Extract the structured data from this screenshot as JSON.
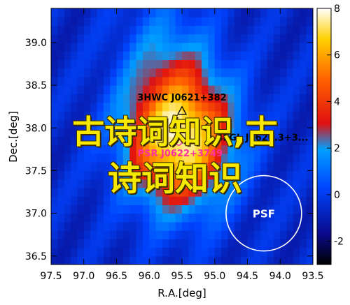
{
  "chart_data": {
    "type": "heatmap",
    "title": "",
    "xlabel": "R.A.[deg]",
    "ylabel": "Dec.[deg]",
    "xlim": [
      97.5,
      93.5
    ],
    "ylim": [
      36.4,
      39.4
    ],
    "x_ticks": [
      "97.5",
      "97.0",
      "96.5",
      "96.0",
      "95.5",
      "95.0",
      "94.5",
      "94.0",
      "93.5"
    ],
    "x_tick_values": [
      97.5,
      97.0,
      96.5,
      96.0,
      95.5,
      95.0,
      94.5,
      94.0,
      93.5
    ],
    "y_ticks": [
      "36.5",
      "37.0",
      "37.5",
      "38.0",
      "38.5",
      "39.0"
    ],
    "y_tick_values": [
      36.5,
      37.0,
      37.5,
      38.0,
      38.5,
      39.0
    ],
    "colorbar": {
      "range": [
        -3,
        8
      ],
      "ticks": [
        "-2",
        "0",
        "2",
        "4",
        "6",
        "8"
      ],
      "tick_values": [
        -2,
        0,
        2,
        4,
        6,
        8
      ],
      "colormap": "jet-like blue-red-yellow-white"
    },
    "peak": {
      "ra": 95.6,
      "dec": 37.85,
      "value": 8.0
    },
    "grid": false,
    "annotations": [
      {
        "label": "3HWC J0621+382",
        "ra": 95.5,
        "dec": 38.2,
        "marker": "triangle"
      },
      {
        "label": "PSR J0622+3749",
        "ra": 95.55,
        "dec": 37.83,
        "marker": "circle",
        "color": "#ff2fa0"
      },
      {
        "label": "4FGL J0620.3+3...",
        "ra": 95.1,
        "dec": 38.0,
        "marker": "crescent"
      },
      {
        "label": "PSF",
        "ra": 94.25,
        "dec": 37.0,
        "marker": "psf-circle"
      }
    ],
    "overlay_text": "古诗词知识,古诗词知识"
  },
  "overlay": {
    "line1": "古诗词知识,古",
    "line2": "诗词知识"
  }
}
